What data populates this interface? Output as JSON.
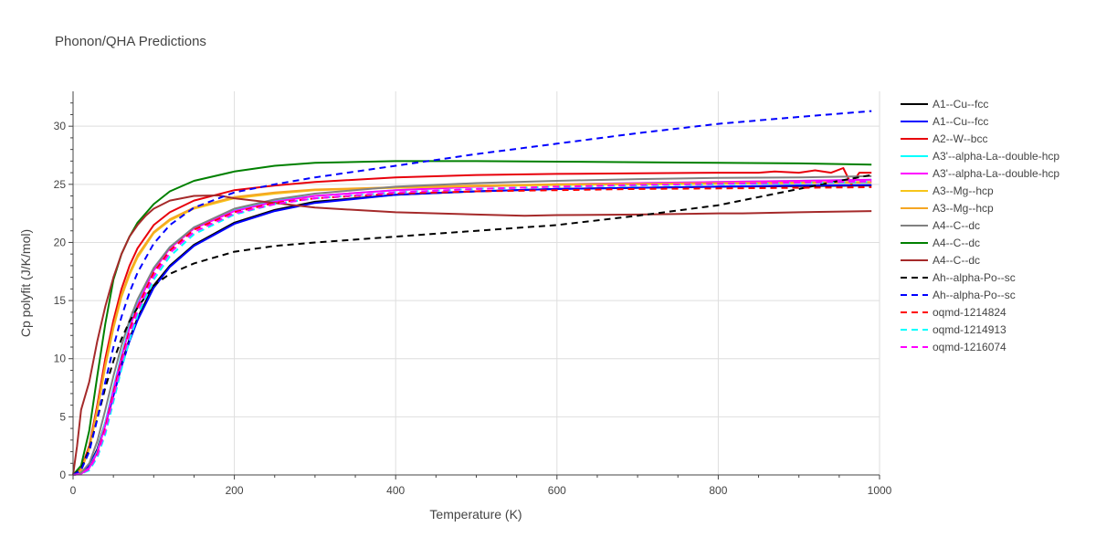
{
  "chart_data": {
    "type": "line",
    "title": "Phonon/QHA Predictions",
    "xlabel": "Temperature (K)",
    "ylabel": "Cp polyfit (J/K/mol)",
    "xlim": [
      0,
      1000
    ],
    "ylim": [
      0,
      33
    ],
    "xticks": [
      0,
      200,
      400,
      600,
      800,
      1000
    ],
    "yticks": [
      0,
      5,
      10,
      15,
      20,
      25,
      30
    ],
    "grid": true,
    "legend_position": "right",
    "series": [
      {
        "name": "A1--Cu--fcc",
        "color": "#000000",
        "dash": "solid",
        "x": [
          0,
          10,
          20,
          30,
          40,
          50,
          60,
          70,
          80,
          100,
          120,
          150,
          200,
          250,
          300,
          400,
          500,
          600,
          700,
          800,
          900,
          990
        ],
        "y": [
          0,
          0.2,
          0.8,
          2.2,
          4.5,
          7.0,
          9.5,
          11.7,
          13.5,
          16.3,
          18.0,
          19.8,
          21.7,
          22.8,
          23.5,
          24.1,
          24.4,
          24.6,
          24.7,
          24.8,
          24.85,
          24.9
        ]
      },
      {
        "name": "A1--Cu--fcc",
        "color": "#0000ff",
        "dash": "solid",
        "x": [
          0,
          10,
          20,
          30,
          40,
          50,
          60,
          70,
          80,
          100,
          120,
          150,
          200,
          250,
          300,
          400,
          500,
          600,
          700,
          800,
          900,
          990
        ],
        "y": [
          0,
          0.2,
          0.8,
          2.1,
          4.3,
          6.8,
          9.3,
          11.5,
          13.3,
          16.1,
          17.9,
          19.7,
          21.6,
          22.7,
          23.4,
          24.1,
          24.4,
          24.6,
          24.7,
          24.8,
          24.9,
          24.95
        ]
      },
      {
        "name": "A2--W--bcc",
        "color": "#e8000b",
        "dash": "solid",
        "x": [
          0,
          10,
          20,
          30,
          40,
          50,
          60,
          70,
          80,
          100,
          120,
          150,
          200,
          250,
          300,
          400,
          500,
          600,
          700,
          800,
          850,
          870,
          900,
          920,
          940,
          955,
          965,
          975,
          990
        ],
        "y": [
          0,
          0.5,
          2.5,
          6.0,
          10.0,
          13.3,
          16.0,
          18.0,
          19.5,
          21.5,
          22.6,
          23.6,
          24.5,
          24.9,
          25.2,
          25.6,
          25.8,
          25.9,
          25.95,
          26.0,
          26.0,
          26.1,
          26.0,
          26.2,
          26.0,
          26.4,
          25.0,
          26.0,
          26.0
        ]
      },
      {
        "name": "A3'--alpha-La--double-hcp",
        "color": "#00ffff",
        "dash": "solid",
        "x": [
          0,
          10,
          20,
          30,
          40,
          50,
          60,
          70,
          80,
          100,
          120,
          150,
          200,
          250,
          300,
          400,
          500,
          600,
          700,
          800,
          900,
          990
        ],
        "y": [
          0,
          0.1,
          0.6,
          2.0,
          4.5,
          7.5,
          10.3,
          12.8,
          14.8,
          17.8,
          19.6,
          21.3,
          22.8,
          23.6,
          24.0,
          24.5,
          24.8,
          25.0,
          25.1,
          25.2,
          25.3,
          25.4
        ]
      },
      {
        "name": "A3'--alpha-La--double-hcp",
        "color": "#ff00ff",
        "dash": "solid",
        "x": [
          0,
          10,
          20,
          30,
          40,
          50,
          60,
          70,
          80,
          100,
          120,
          150,
          200,
          250,
          300,
          400,
          500,
          600,
          700,
          800,
          900,
          990
        ],
        "y": [
          0,
          0.1,
          0.6,
          1.9,
          4.3,
          7.3,
          10.1,
          12.6,
          14.6,
          17.6,
          19.5,
          21.2,
          22.7,
          23.5,
          24.0,
          24.5,
          24.8,
          25.0,
          25.1,
          25.2,
          25.3,
          25.4
        ]
      },
      {
        "name": "A3--Mg--hcp",
        "color": "#f7c51a",
        "dash": "solid",
        "x": [
          0,
          10,
          20,
          30,
          40,
          50,
          60,
          70,
          80,
          100,
          120,
          150,
          200,
          250,
          300,
          400,
          500,
          600,
          700,
          800,
          900,
          990
        ],
        "y": [
          0,
          0.4,
          2.2,
          5.5,
          9.3,
          12.6,
          15.3,
          17.2,
          18.7,
          20.8,
          21.9,
          22.9,
          23.8,
          24.2,
          24.5,
          24.7,
          24.85,
          24.95,
          25.0,
          25.05,
          25.1,
          25.15
        ]
      },
      {
        "name": "A3--Mg--hcp",
        "color": "#f5a623",
        "dash": "solid",
        "x": [
          0,
          10,
          20,
          30,
          40,
          50,
          60,
          70,
          80,
          100,
          120,
          150,
          200,
          250,
          300,
          400,
          500,
          600,
          700,
          800,
          900,
          990
        ],
        "y": [
          0,
          0.4,
          2.3,
          5.7,
          9.5,
          12.8,
          15.5,
          17.4,
          18.9,
          20.9,
          22.0,
          23.0,
          23.9,
          24.3,
          24.55,
          24.75,
          24.9,
          25.0,
          25.05,
          25.1,
          25.15,
          25.2
        ]
      },
      {
        "name": "A4--C--dc",
        "color": "#808080",
        "dash": "solid",
        "x": [
          0,
          10,
          20,
          30,
          40,
          50,
          60,
          70,
          80,
          100,
          120,
          150,
          200,
          250,
          300,
          400,
          500,
          600,
          700,
          800,
          900,
          990
        ],
        "y": [
          0,
          0.2,
          1.0,
          2.9,
          5.6,
          8.5,
          11.1,
          13.3,
          15.1,
          17.8,
          19.6,
          21.3,
          22.9,
          23.7,
          24.2,
          24.8,
          25.1,
          25.3,
          25.45,
          25.55,
          25.6,
          25.7
        ]
      },
      {
        "name": "A4--C--dc",
        "color": "#008000",
        "dash": "solid",
        "x": [
          0,
          10,
          20,
          30,
          40,
          50,
          60,
          70,
          80,
          100,
          120,
          150,
          200,
          250,
          300,
          400,
          500,
          600,
          700,
          800,
          900,
          990
        ],
        "y": [
          0,
          0.8,
          3.8,
          8.5,
          13.0,
          16.8,
          19.0,
          20.5,
          21.7,
          23.3,
          24.4,
          25.3,
          26.1,
          26.6,
          26.85,
          27.0,
          27.0,
          26.95,
          26.9,
          26.85,
          26.8,
          26.7
        ]
      },
      {
        "name": "A4--C--dc",
        "color": "#a52a2a",
        "dash": "solid",
        "x": [
          0,
          5,
          10,
          20,
          30,
          40,
          50,
          60,
          70,
          80,
          90,
          100,
          120,
          150,
          180,
          200,
          250,
          300,
          400,
          500,
          560,
          600,
          700,
          800,
          830,
          900,
          990
        ],
        "y": [
          0,
          2.5,
          5.6,
          8.0,
          11.5,
          14.5,
          17.0,
          19.0,
          20.5,
          21.5,
          22.3,
          22.9,
          23.6,
          24.0,
          24.05,
          23.8,
          23.4,
          23.0,
          22.6,
          22.4,
          22.3,
          22.35,
          22.4,
          22.5,
          22.5,
          22.6,
          22.7
        ]
      },
      {
        "name": "Ah--alpha-Po--sc",
        "color": "#000000",
        "dash": "dashed",
        "x": [
          0,
          10,
          20,
          30,
          40,
          50,
          60,
          70,
          80,
          100,
          120,
          150,
          200,
          250,
          300,
          400,
          500,
          600,
          700,
          800,
          850,
          900,
          950,
          990
        ],
        "y": [
          0,
          0.5,
          2.2,
          4.8,
          7.5,
          9.8,
          11.7,
          13.2,
          14.4,
          16.3,
          17.3,
          18.2,
          19.2,
          19.7,
          20.0,
          20.5,
          21.0,
          21.5,
          22.3,
          23.2,
          23.9,
          24.6,
          25.3,
          25.8
        ]
      },
      {
        "name": "Ah--alpha-Po--sc",
        "color": "#0000ff",
        "dash": "dashed",
        "x": [
          0,
          10,
          20,
          30,
          40,
          50,
          60,
          70,
          80,
          100,
          120,
          150,
          200,
          250,
          300,
          400,
          500,
          600,
          700,
          800,
          900,
          990
        ],
        "y": [
          0,
          0.4,
          2.0,
          4.8,
          8.0,
          11.0,
          13.6,
          15.7,
          17.4,
          19.9,
          21.5,
          23.0,
          24.3,
          25.0,
          25.6,
          26.6,
          27.6,
          28.5,
          29.4,
          30.2,
          30.8,
          31.3
        ]
      },
      {
        "name": "oqmd-1214824",
        "color": "#ff0000",
        "dash": "dashed",
        "x": [
          0,
          10,
          20,
          30,
          40,
          50,
          60,
          70,
          80,
          100,
          120,
          150,
          200,
          250,
          300,
          400,
          500,
          600,
          700,
          800,
          900,
          990
        ],
        "y": [
          0,
          0.1,
          0.5,
          1.8,
          4.0,
          7.0,
          9.9,
          12.4,
          14.4,
          17.4,
          19.3,
          21.1,
          22.6,
          23.4,
          23.8,
          24.2,
          24.4,
          24.5,
          24.6,
          24.65,
          24.7,
          24.75
        ]
      },
      {
        "name": "oqmd-1214913",
        "color": "#00ffff",
        "dash": "dashed",
        "x": [
          0,
          10,
          20,
          30,
          40,
          50,
          60,
          70,
          80,
          100,
          120,
          150,
          200,
          250,
          300,
          400,
          500,
          600,
          700,
          800,
          900,
          990
        ],
        "y": [
          0,
          0.1,
          0.4,
          1.5,
          3.5,
          6.3,
          9.1,
          11.6,
          13.7,
          16.8,
          18.8,
          20.7,
          22.4,
          23.3,
          23.8,
          24.3,
          24.6,
          24.8,
          24.9,
          25.0,
          25.1,
          25.2
        ]
      },
      {
        "name": "oqmd-1216074",
        "color": "#ff00ff",
        "dash": "dashed",
        "x": [
          0,
          10,
          20,
          30,
          40,
          50,
          60,
          70,
          80,
          100,
          120,
          150,
          200,
          250,
          300,
          400,
          500,
          600,
          700,
          800,
          900,
          990
        ],
        "y": [
          0,
          0.1,
          0.5,
          1.7,
          3.8,
          6.7,
          9.6,
          12.1,
          14.1,
          17.1,
          19.1,
          20.9,
          22.5,
          23.3,
          23.8,
          24.3,
          24.6,
          24.8,
          24.95,
          25.05,
          25.15,
          25.25
        ]
      }
    ]
  }
}
